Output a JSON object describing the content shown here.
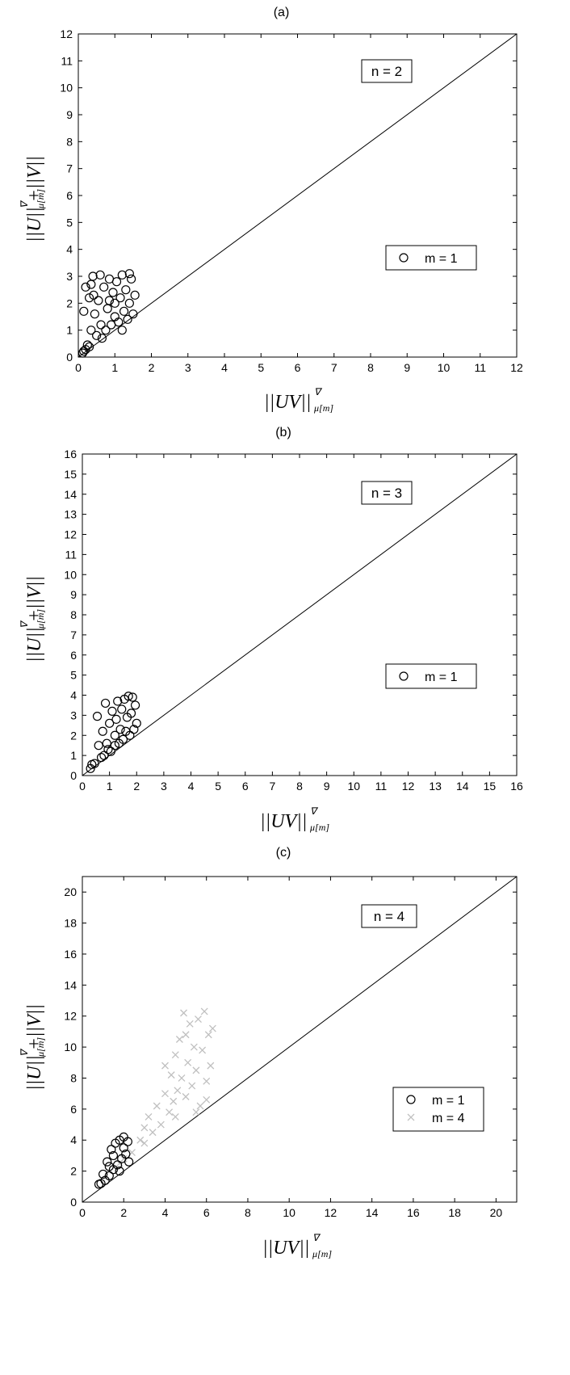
{
  "chart_data": [
    {
      "type": "scatter",
      "panel_title": "(a)",
      "annotation": "n = 2",
      "xlabel": "||UV||",
      "ylabel": "||U||  +||V||",
      "label_superscript": "∇",
      "label_subscript": "μ[m]",
      "xlim": [
        0,
        12
      ],
      "ylim": [
        0,
        12
      ],
      "xticks": [
        0,
        1,
        2,
        3,
        4,
        5,
        6,
        7,
        8,
        9,
        10,
        11,
        12
      ],
      "yticks": [
        0,
        1,
        2,
        3,
        4,
        5,
        6,
        7,
        8,
        9,
        10,
        11,
        12
      ],
      "reference_line": "y = x",
      "legend_position": "right-middle",
      "series": [
        {
          "name": "m = 1",
          "marker": "circle",
          "color": "#000000",
          "points": [
            [
              0.12,
              0.15
            ],
            [
              0.15,
              0.22
            ],
            [
              0.2,
              0.28
            ],
            [
              0.25,
              0.45
            ],
            [
              0.3,
              0.38
            ],
            [
              0.35,
              1.0
            ],
            [
              0.35,
              2.7
            ],
            [
              0.4,
              3.0
            ],
            [
              0.42,
              2.3
            ],
            [
              0.5,
              0.8
            ],
            [
              0.55,
              2.1
            ],
            [
              0.6,
              3.05
            ],
            [
              0.62,
              1.2
            ],
            [
              0.7,
              2.6
            ],
            [
              0.75,
              1.0
            ],
            [
              0.8,
              1.8
            ],
            [
              0.85,
              2.9
            ],
            [
              0.9,
              1.2
            ],
            [
              0.95,
              2.4
            ],
            [
              1.0,
              1.5
            ],
            [
              1.05,
              2.8
            ],
            [
              1.1,
              1.3
            ],
            [
              1.15,
              2.2
            ],
            [
              1.2,
              3.05
            ],
            [
              1.25,
              1.7
            ],
            [
              1.3,
              2.5
            ],
            [
              1.35,
              1.4
            ],
            [
              1.4,
              2.0
            ],
            [
              1.45,
              2.9
            ],
            [
              1.5,
              1.6
            ],
            [
              1.55,
              2.3
            ],
            [
              1.2,
              1.0
            ],
            [
              1.0,
              2.0
            ],
            [
              0.65,
              0.7
            ],
            [
              1.4,
              3.1
            ],
            [
              0.15,
              1.7
            ],
            [
              0.2,
              2.6
            ],
            [
              0.3,
              2.2
            ],
            [
              0.45,
              1.6
            ],
            [
              0.85,
              2.1
            ]
          ]
        }
      ]
    },
    {
      "type": "scatter",
      "panel_title": "(b)",
      "annotation": "n = 3",
      "xlabel": "||UV||",
      "ylabel": "||U||  +||V||",
      "label_superscript": "∇",
      "label_subscript": "μ[m]",
      "xlim": [
        0,
        16
      ],
      "ylim": [
        0,
        16
      ],
      "xticks": [
        0,
        1,
        2,
        3,
        4,
        5,
        6,
        7,
        8,
        9,
        10,
        11,
        12,
        13,
        14,
        15,
        16
      ],
      "yticks": [
        0,
        1,
        2,
        3,
        4,
        5,
        6,
        7,
        8,
        9,
        10,
        11,
        12,
        13,
        14,
        15,
        16
      ],
      "reference_line": "y = x",
      "legend_position": "right-middle",
      "series": [
        {
          "name": "m = 1",
          "marker": "circle",
          "color": "#000000",
          "points": [
            [
              0.3,
              0.35
            ],
            [
              0.35,
              0.55
            ],
            [
              0.45,
              0.6
            ],
            [
              0.55,
              2.95
            ],
            [
              0.6,
              1.5
            ],
            [
              0.7,
              0.9
            ],
            [
              0.75,
              2.2
            ],
            [
              0.8,
              1.0
            ],
            [
              0.85,
              3.6
            ],
            [
              0.9,
              1.6
            ],
            [
              1.0,
              2.6
            ],
            [
              1.05,
              1.2
            ],
            [
              1.1,
              3.2
            ],
            [
              1.2,
              1.5
            ],
            [
              1.25,
              2.8
            ],
            [
              1.3,
              3.7
            ],
            [
              1.35,
              1.6
            ],
            [
              1.4,
              2.3
            ],
            [
              1.45,
              3.3
            ],
            [
              1.5,
              1.8
            ],
            [
              1.55,
              3.8
            ],
            [
              1.6,
              2.2
            ],
            [
              1.65,
              2.9
            ],
            [
              1.7,
              3.95
            ],
            [
              1.75,
              2.0
            ],
            [
              1.8,
              3.1
            ],
            [
              1.85,
              3.9
            ],
            [
              1.9,
              2.3
            ],
            [
              1.95,
              3.5
            ],
            [
              2.0,
              2.6
            ],
            [
              1.2,
              2.0
            ],
            [
              0.95,
              1.3
            ]
          ]
        }
      ]
    },
    {
      "type": "scatter",
      "panel_title": "(c)",
      "annotation": "n = 4",
      "xlabel": "||UV||",
      "ylabel": "||U||  +||V||",
      "label_superscript": "∇",
      "label_subscript": "μ[m]",
      "xlim": [
        0,
        21
      ],
      "ylim": [
        0,
        21
      ],
      "xticks": [
        0,
        2,
        4,
        6,
        8,
        10,
        12,
        14,
        16,
        18,
        20
      ],
      "yticks": [
        0,
        2,
        4,
        6,
        8,
        10,
        12,
        14,
        16,
        18,
        20
      ],
      "reference_line": "y = x",
      "legend_position": "right-lower",
      "series": [
        {
          "name": "m = 4",
          "marker": "cross",
          "color": "#c0c0c0",
          "points": [
            [
              1.8,
              2.5
            ],
            [
              2.0,
              2.8
            ],
            [
              2.4,
              3.2
            ],
            [
              2.8,
              4.0
            ],
            [
              3.0,
              4.8
            ],
            [
              3.2,
              5.5
            ],
            [
              3.4,
              4.5
            ],
            [
              3.6,
              6.2
            ],
            [
              3.8,
              5.0
            ],
            [
              4.0,
              7.0
            ],
            [
              4.2,
              5.8
            ],
            [
              4.3,
              8.2
            ],
            [
              4.4,
              6.5
            ],
            [
              4.5,
              9.5
            ],
            [
              4.6,
              7.2
            ],
            [
              4.7,
              10.5
            ],
            [
              4.8,
              8.0
            ],
            [
              4.9,
              12.2
            ],
            [
              5.0,
              6.8
            ],
            [
              5.1,
              9.0
            ],
            [
              5.2,
              11.5
            ],
            [
              5.3,
              7.5
            ],
            [
              5.4,
              10.0
            ],
            [
              5.5,
              8.5
            ],
            [
              5.6,
              11.8
            ],
            [
              5.7,
              6.2
            ],
            [
              5.8,
              9.8
            ],
            [
              5.9,
              12.3
            ],
            [
              6.0,
              7.8
            ],
            [
              6.1,
              10.8
            ],
            [
              6.2,
              8.8
            ],
            [
              6.3,
              11.2
            ],
            [
              5.5,
              5.8
            ],
            [
              4.0,
              8.8
            ],
            [
              5.0,
              10.8
            ],
            [
              6.0,
              6.6
            ],
            [
              4.5,
              5.5
            ],
            [
              3.0,
              3.8
            ]
          ]
        },
        {
          "name": "m = 1",
          "marker": "circle",
          "color": "#000000",
          "points": [
            [
              0.8,
              1.15
            ],
            [
              0.9,
              1.2
            ],
            [
              1.0,
              1.8
            ],
            [
              1.1,
              1.4
            ],
            [
              1.2,
              2.6
            ],
            [
              1.3,
              1.7
            ],
            [
              1.4,
              3.4
            ],
            [
              1.5,
              2.1
            ],
            [
              1.6,
              3.8
            ],
            [
              1.7,
              2.4
            ],
            [
              1.8,
              4.0
            ],
            [
              1.9,
              2.8
            ],
            [
              2.0,
              4.2
            ],
            [
              2.1,
              3.1
            ],
            [
              2.2,
              3.9
            ],
            [
              2.25,
              2.6
            ],
            [
              1.5,
              3.0
            ],
            [
              1.8,
              2.0
            ],
            [
              2.0,
              3.5
            ],
            [
              1.3,
              2.3
            ]
          ]
        }
      ]
    }
  ]
}
